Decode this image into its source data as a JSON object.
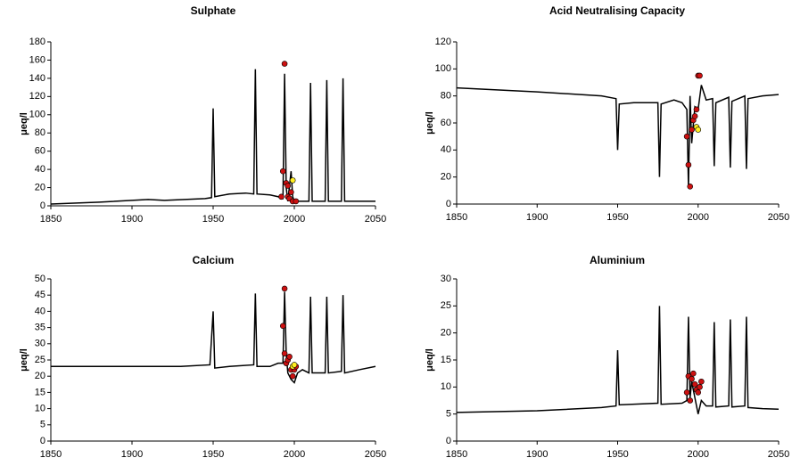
{
  "chart_data": [
    {
      "type": "line",
      "title": "Sulphate",
      "y_label": "μeq/l",
      "xlim": [
        1850,
        2050
      ],
      "xticks": [
        1850,
        1900,
        1950,
        2000,
        2050
      ],
      "ylim": [
        0,
        180
      ],
      "yticks": [
        0,
        20,
        40,
        60,
        80,
        100,
        120,
        140,
        160,
        180
      ],
      "series": [
        {
          "type": "line",
          "color": "#000000",
          "x": [
            1850,
            1880,
            1910,
            1920,
            1945,
            1949,
            1950,
            1951,
            1960,
            1970,
            1975,
            1976,
            1977,
            1985,
            1990,
            1993,
            1994,
            1995,
            1996,
            1998,
            1999,
            2000,
            2005,
            2009,
            2010,
            2011,
            2019,
            2020,
            2021,
            2029,
            2030,
            2031,
            2050
          ],
          "values": [
            2,
            4,
            7,
            6,
            8,
            9,
            107,
            10,
            13,
            14,
            13,
            150,
            13,
            12,
            10,
            8,
            145,
            20,
            5,
            38,
            10,
            5,
            5,
            5,
            135,
            5,
            5,
            138,
            5,
            5,
            140,
            5,
            5
          ]
        },
        {
          "type": "scatter",
          "color": "#cc1111",
          "x": [
            1992,
            1993,
            1994,
            1995,
            1996,
            1996,
            1997,
            1998,
            1999,
            2001
          ],
          "values": [
            10,
            38,
            156,
            25,
            10,
            22,
            8,
            15,
            5,
            5
          ]
        },
        {
          "type": "scatter",
          "color": "#ffee22",
          "x": [
            1999
          ],
          "values": [
            28
          ]
        }
      ]
    },
    {
      "type": "line",
      "title": "Acid Neutralising Capacity",
      "y_label": "μeq/l",
      "xlim": [
        1850,
        2050
      ],
      "xticks": [
        1850,
        1900,
        1950,
        2000,
        2050
      ],
      "ylim": [
        0,
        120
      ],
      "yticks": [
        0,
        20,
        40,
        60,
        80,
        100,
        120
      ],
      "series": [
        {
          "type": "line",
          "color": "#000000",
          "x": [
            1850,
            1900,
            1940,
            1949,
            1950,
            1951,
            1960,
            1975,
            1976,
            1977,
            1985,
            1990,
            1993,
            1994,
            1995,
            1996,
            1998,
            2000,
            2002,
            2005,
            2009,
            2010,
            2011,
            2019,
            2020,
            2021,
            2029,
            2030,
            2031,
            2040,
            2050
          ],
          "values": [
            86,
            83,
            80,
            78,
            40,
            74,
            75,
            75,
            20,
            74,
            77,
            75,
            70,
            12,
            80,
            45,
            72,
            70,
            88,
            77,
            78,
            28,
            75,
            79,
            27,
            76,
            80,
            26,
            78,
            80,
            81
          ]
        },
        {
          "type": "scatter",
          "color": "#cc1111",
          "x": [
            1993,
            1994,
            1995,
            1996,
            1997,
            1998,
            1999,
            2000,
            2001
          ],
          "values": [
            50,
            29,
            13,
            55,
            62,
            65,
            70,
            95,
            95
          ]
        },
        {
          "type": "scatter",
          "color": "#ffee22",
          "x": [
            1999,
            2000
          ],
          "values": [
            57,
            55
          ]
        }
      ]
    },
    {
      "type": "line",
      "title": "Calcium",
      "y_label": "μeq/l",
      "xlim": [
        1850,
        2050
      ],
      "xticks": [
        1850,
        1900,
        1950,
        2000,
        2050
      ],
      "ylim": [
        0,
        50
      ],
      "yticks": [
        0,
        5,
        10,
        15,
        20,
        25,
        30,
        35,
        40,
        45,
        50
      ],
      "series": [
        {
          "type": "line",
          "color": "#000000",
          "x": [
            1850,
            1930,
            1948,
            1950,
            1951,
            1960,
            1975,
            1976,
            1977,
            1985,
            1990,
            1993,
            1994,
            1995,
            1996,
            1998,
            2000,
            2002,
            2005,
            2009,
            2010,
            2011,
            2019,
            2020,
            2021,
            2029,
            2030,
            2031,
            2040,
            2050
          ],
          "values": [
            23,
            23,
            23.5,
            40,
            22.5,
            23,
            23.5,
            45.5,
            23,
            23,
            24,
            24,
            46,
            27,
            21,
            19,
            18,
            21,
            22,
            21,
            44.5,
            21,
            21,
            44.5,
            21,
            21.5,
            45,
            21,
            22,
            23
          ]
        },
        {
          "type": "scatter",
          "color": "#cc1111",
          "x": [
            1993,
            1994,
            1994,
            1995,
            1996,
            1997,
            1998,
            1999,
            2000,
            2001
          ],
          "values": [
            35.5,
            47,
            27,
            24,
            25,
            26,
            22,
            20,
            22,
            23
          ]
        },
        {
          "type": "scatter",
          "color": "#ffee22",
          "x": [
            1999,
            2000
          ],
          "values": [
            23,
            23.5
          ]
        }
      ]
    },
    {
      "type": "line",
      "title": "Aluminium",
      "y_label": "μeq/l",
      "xlim": [
        1850,
        2050
      ],
      "xticks": [
        1850,
        1900,
        1950,
        2000,
        2050
      ],
      "ylim": [
        0,
        30
      ],
      "yticks": [
        0,
        5,
        10,
        15,
        20,
        25,
        30
      ],
      "series": [
        {
          "type": "line",
          "color": "#000000",
          "x": [
            1850,
            1900,
            1940,
            1949,
            1950,
            1951,
            1975,
            1976,
            1977,
            1990,
            1993,
            1994,
            1995,
            1996,
            1998,
            2000,
            2002,
            2005,
            2009,
            2010,
            2011,
            2019,
            2020,
            2021,
            2029,
            2030,
            2031,
            2040,
            2050
          ],
          "values": [
            5.3,
            5.6,
            6.2,
            6.5,
            16.8,
            6.7,
            7,
            25,
            6.8,
            7,
            7.5,
            23,
            8,
            11,
            8,
            5,
            7.5,
            6.5,
            6.5,
            22,
            6.3,
            6.5,
            22.5,
            6.3,
            6.5,
            23,
            6.2,
            6,
            5.9
          ]
        },
        {
          "type": "scatter",
          "color": "#cc1111",
          "x": [
            1993,
            1994,
            1995,
            1996,
            1997,
            1998,
            1999,
            2000,
            2001,
            2002
          ],
          "values": [
            9,
            12,
            7.5,
            11.5,
            12.5,
            10.5,
            9.5,
            9,
            10,
            11
          ]
        }
      ]
    }
  ]
}
